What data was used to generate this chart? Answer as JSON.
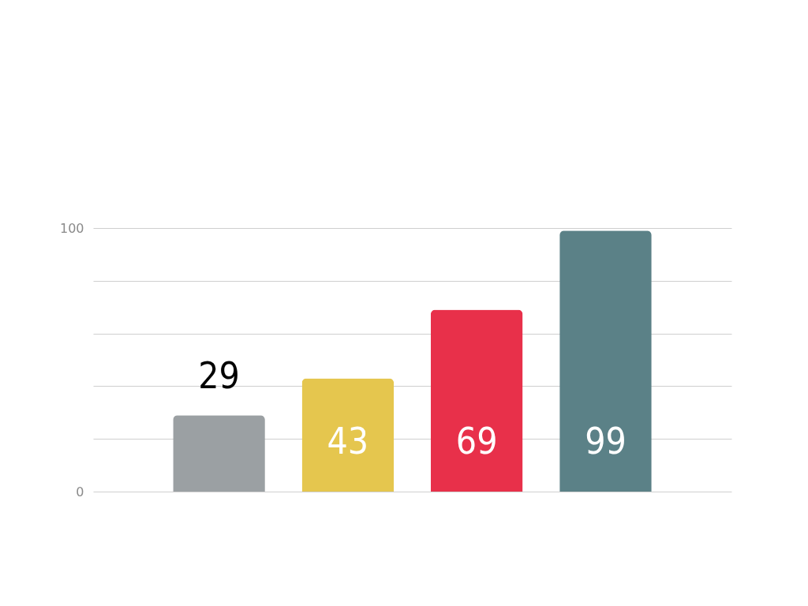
{
  "chart_data": {
    "type": "bar",
    "categories": [
      null,
      null,
      null,
      null
    ],
    "values": [
      29,
      43,
      69,
      99
    ],
    "colors": [
      "#9ba0a3",
      "#e5c64e",
      "#e8304a",
      "#5b8187"
    ],
    "ylim": [
      0,
      100
    ],
    "yticks": [
      0,
      {
        "value": 20,
        "label": null
      },
      {
        "value": 40,
        "label": null
      },
      {
        "value": 60,
        "label": null
      },
      {
        "value": 80,
        "label": null
      },
      100
    ],
    "grid": "y",
    "data_labels": true,
    "tick_labels": "y"
  }
}
